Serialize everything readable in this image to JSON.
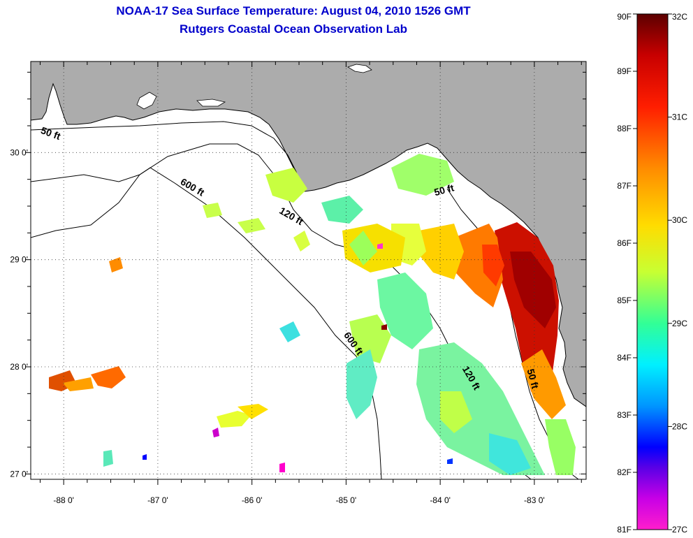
{
  "header": {
    "title_line1": "NOAA-17 Sea Surface Temperature:  August 04, 2010 1526 GMT",
    "title_line2": "Rutgers Coastal Ocean Observation Lab"
  },
  "map": {
    "region": "Eastern Gulf of Mexico / Florida Big Bend",
    "lon_range": [
      -88.35,
      -82.45
    ],
    "lat_range": [
      26.95,
      30.85
    ],
    "x_ticks": [
      {
        "value": -88,
        "label": "-88 0'"
      },
      {
        "value": -87,
        "label": "-87 0'"
      },
      {
        "value": -86,
        "label": "-86 0'"
      },
      {
        "value": -85,
        "label": "-85 0'"
      },
      {
        "value": -84,
        "label": "-84 0'"
      },
      {
        "value": -83,
        "label": "-83 0'"
      }
    ],
    "y_ticks": [
      {
        "value": 30,
        "label": "30 0'"
      },
      {
        "value": 29,
        "label": "29 0'"
      },
      {
        "value": 28,
        "label": "28 0'"
      },
      {
        "value": 27,
        "label": "27 0'"
      }
    ],
    "contour_labels": [
      {
        "text": "50 ft",
        "lon": -88.15,
        "lat": 30.15
      },
      {
        "text": "600 ft",
        "lon": -86.65,
        "lat": 29.65
      },
      {
        "text": "120 ft",
        "lon": -85.6,
        "lat": 29.38
      },
      {
        "text": "50 ft",
        "lon": -83.95,
        "lat": 29.62
      },
      {
        "text": "600 ft",
        "lon": -84.95,
        "lat": 28.2
      },
      {
        "text": "120 ft",
        "lon": -83.7,
        "lat": 27.88
      },
      {
        "text": "50 ft",
        "lon": -83.05,
        "lat": 27.88
      }
    ],
    "colors": {
      "land": "#acacac",
      "ocean": "#ffffff",
      "grid": "#444444"
    }
  },
  "colorbar": {
    "fahrenheit": [
      "90F",
      "89F",
      "88F",
      "87F",
      "86F",
      "85F",
      "84F",
      "83F",
      "82F",
      "81F"
    ],
    "celsius": [
      "32C",
      "31C",
      "30C",
      "29C",
      "28C",
      "27C"
    ],
    "range_f": [
      81,
      90
    ],
    "range_c": [
      27,
      32
    ]
  }
}
